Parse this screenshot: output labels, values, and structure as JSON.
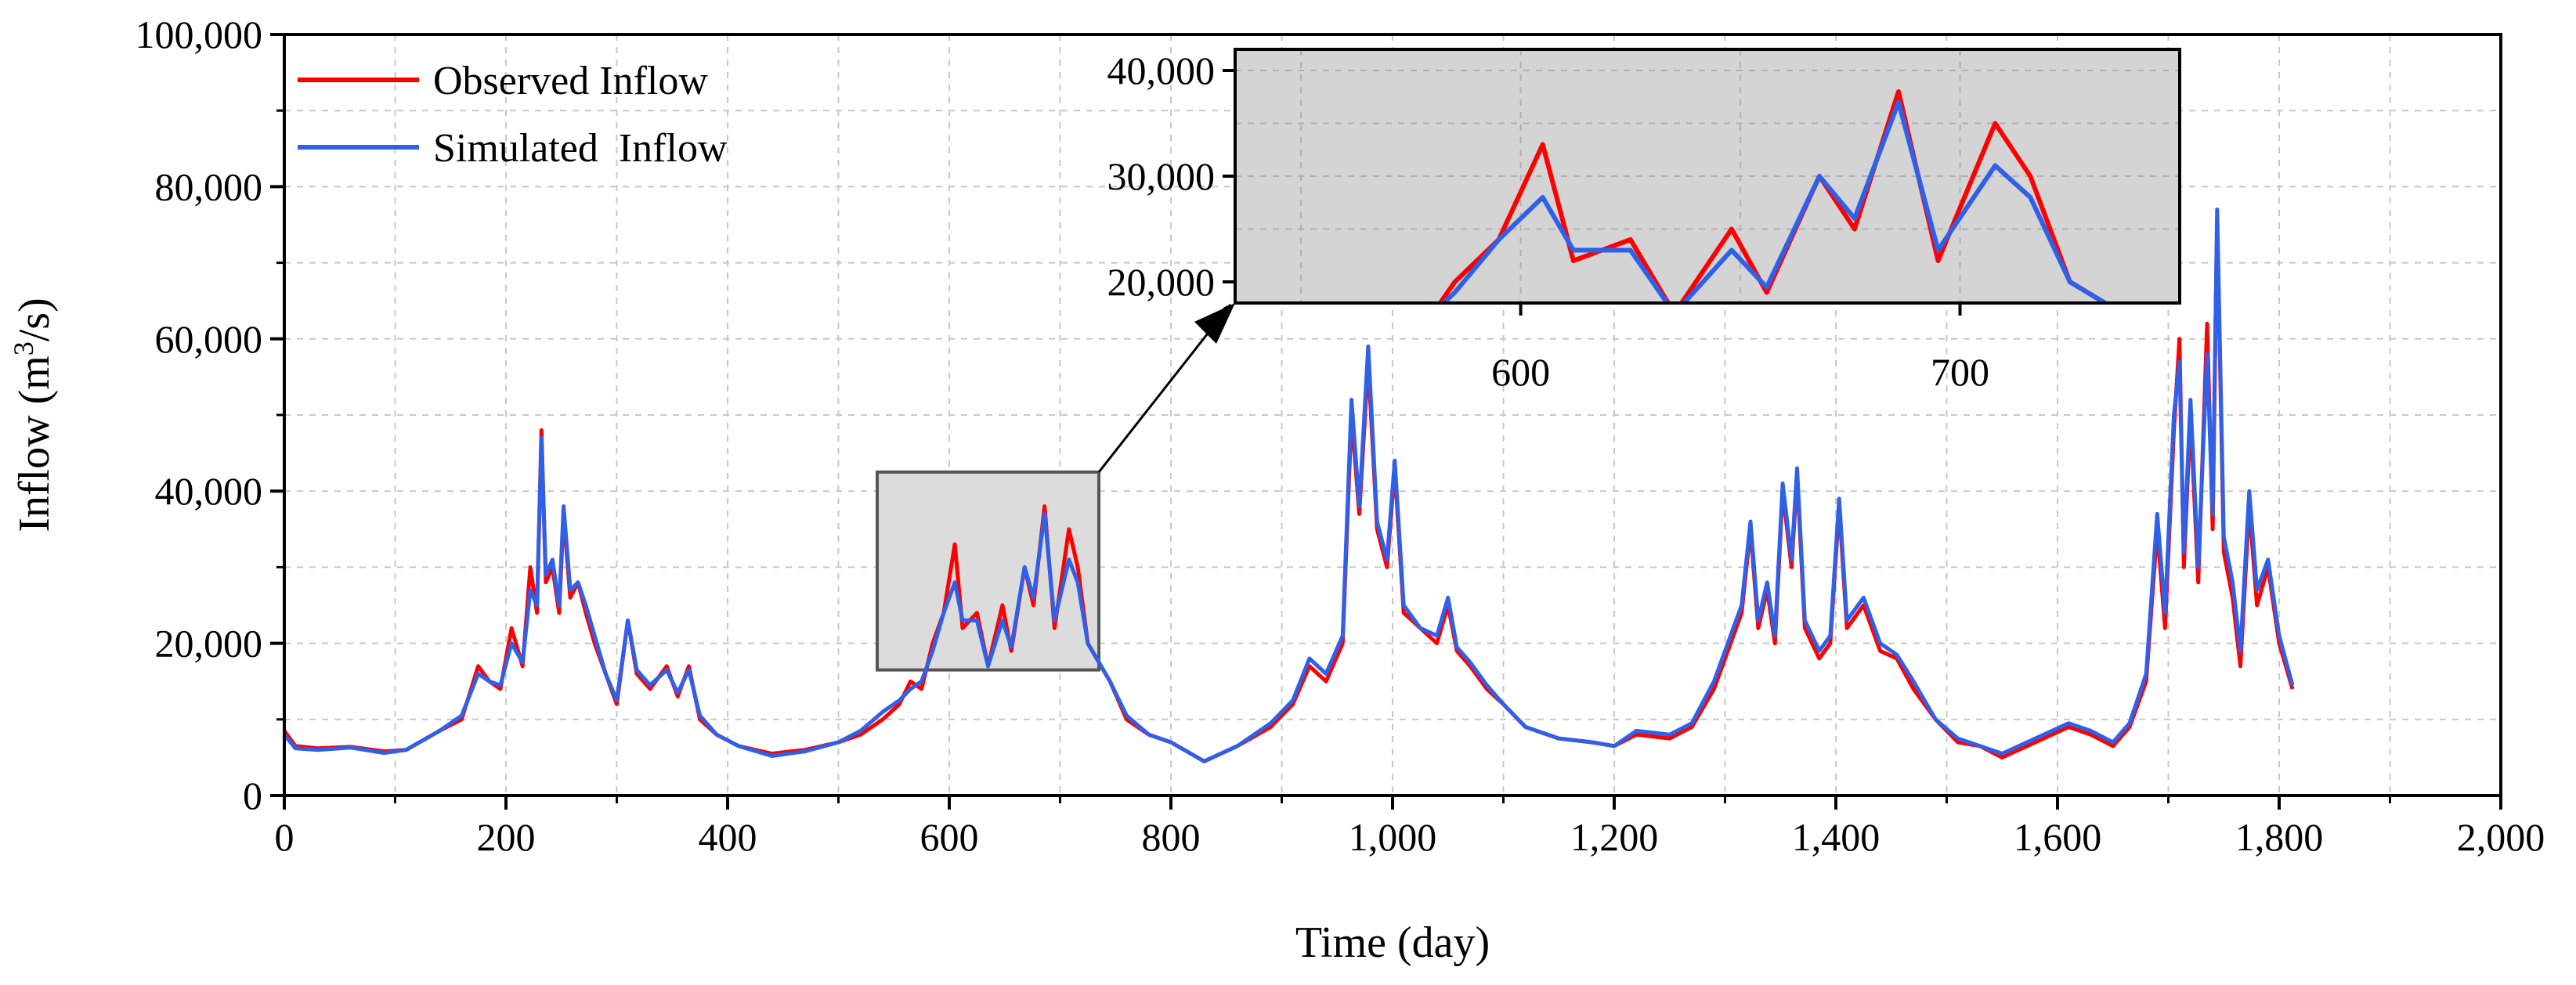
{
  "colors": {
    "observed": "#ff0000",
    "simulated": "#2f60e8",
    "grid": "#c8c8c8",
    "inset_bg": "#d4d4d4",
    "zoom_box_fill": "#dcdcdc"
  },
  "chart_data": {
    "type": "line",
    "xlabel": "Time (day)",
    "ylabel_main": "Inflow (m",
    "ylabel_sup": "3",
    "ylabel_tail": "/s)",
    "xlim": [
      0,
      2000
    ],
    "ylim": [
      0,
      100000
    ],
    "x_ticks": [
      0,
      200,
      400,
      600,
      800,
      1000,
      1200,
      1400,
      1600,
      1800,
      2000
    ],
    "x_tick_labels": [
      "0",
      "200",
      "400",
      "600",
      "800",
      "1,000",
      "1,200",
      "1,400",
      "1,600",
      "1,800",
      "2,000"
    ],
    "y_ticks": [
      0,
      20000,
      40000,
      60000,
      80000,
      100000
    ],
    "y_tick_labels": [
      "0",
      "20,000",
      "40,000",
      "60,000",
      "80,000",
      "100,000"
    ],
    "grid": true,
    "legend_position": "top-left",
    "series": [
      {
        "name": "Observed Inflow",
        "color": "#ff0000",
        "points": [
          [
            0,
            8500
          ],
          [
            10,
            6500
          ],
          [
            30,
            6200
          ],
          [
            60,
            6400
          ],
          [
            90,
            5800
          ],
          [
            110,
            6000
          ],
          [
            140,
            8500
          ],
          [
            160,
            10000
          ],
          [
            175,
            17000
          ],
          [
            185,
            15000
          ],
          [
            195,
            14000
          ],
          [
            205,
            22000
          ],
          [
            215,
            17000
          ],
          [
            222,
            30000
          ],
          [
            228,
            24000
          ],
          [
            232,
            48000
          ],
          [
            236,
            28000
          ],
          [
            242,
            30000
          ],
          [
            248,
            24000
          ],
          [
            252,
            37000
          ],
          [
            258,
            26000
          ],
          [
            265,
            28000
          ],
          [
            272,
            24000
          ],
          [
            280,
            20000
          ],
          [
            290,
            16000
          ],
          [
            300,
            12000
          ],
          [
            310,
            23000
          ],
          [
            318,
            16000
          ],
          [
            330,
            14000
          ],
          [
            345,
            17000
          ],
          [
            355,
            13000
          ],
          [
            365,
            17000
          ],
          [
            375,
            10000
          ],
          [
            390,
            8000
          ],
          [
            410,
            6500
          ],
          [
            440,
            5500
          ],
          [
            470,
            6000
          ],
          [
            500,
            7000
          ],
          [
            520,
            8000
          ],
          [
            540,
            10000
          ],
          [
            555,
            12000
          ],
          [
            565,
            15000
          ],
          [
            575,
            14000
          ],
          [
            585,
            20000
          ],
          [
            595,
            24000
          ],
          [
            605,
            33000
          ],
          [
            612,
            22000
          ],
          [
            625,
            24000
          ],
          [
            635,
            17000
          ],
          [
            648,
            25000
          ],
          [
            656,
            19000
          ],
          [
            668,
            30000
          ],
          [
            676,
            25000
          ],
          [
            686,
            38000
          ],
          [
            695,
            22000
          ],
          [
            708,
            35000
          ],
          [
            716,
            30000
          ],
          [
            725,
            20000
          ],
          [
            745,
            15000
          ],
          [
            760,
            10000
          ],
          [
            780,
            8000
          ],
          [
            800,
            7000
          ],
          [
            830,
            4500
          ],
          [
            860,
            6500
          ],
          [
            890,
            9000
          ],
          [
            910,
            12000
          ],
          [
            925,
            17000
          ],
          [
            940,
            15000
          ],
          [
            955,
            20000
          ],
          [
            963,
            50000
          ],
          [
            970,
            37000
          ],
          [
            978,
            57000
          ],
          [
            986,
            35000
          ],
          [
            995,
            30000
          ],
          [
            1002,
            43000
          ],
          [
            1010,
            24000
          ],
          [
            1025,
            22000
          ],
          [
            1040,
            20000
          ],
          [
            1050,
            25000
          ],
          [
            1058,
            19000
          ],
          [
            1070,
            17000
          ],
          [
            1085,
            14000
          ],
          [
            1100,
            12000
          ],
          [
            1120,
            9000
          ],
          [
            1150,
            7500
          ],
          [
            1180,
            7000
          ],
          [
            1200,
            6500
          ],
          [
            1220,
            8000
          ],
          [
            1250,
            7500
          ],
          [
            1270,
            9000
          ],
          [
            1290,
            14000
          ],
          [
            1305,
            20000
          ],
          [
            1315,
            24000
          ],
          [
            1323,
            35000
          ],
          [
            1330,
            22000
          ],
          [
            1338,
            27000
          ],
          [
            1345,
            20000
          ],
          [
            1352,
            40000
          ],
          [
            1360,
            30000
          ],
          [
            1365,
            42000
          ],
          [
            1372,
            22000
          ],
          [
            1385,
            18000
          ],
          [
            1395,
            20000
          ],
          [
            1403,
            38000
          ],
          [
            1410,
            22000
          ],
          [
            1425,
            25000
          ],
          [
            1440,
            19000
          ],
          [
            1455,
            18000
          ],
          [
            1470,
            14000
          ],
          [
            1490,
            10000
          ],
          [
            1510,
            7000
          ],
          [
            1530,
            6500
          ],
          [
            1550,
            5000
          ],
          [
            1580,
            7000
          ],
          [
            1610,
            9000
          ],
          [
            1630,
            8000
          ],
          [
            1650,
            6500
          ],
          [
            1665,
            9000
          ],
          [
            1680,
            15000
          ],
          [
            1690,
            35000
          ],
          [
            1697,
            22000
          ],
          [
            1705,
            48000
          ],
          [
            1710,
            60000
          ],
          [
            1714,
            30000
          ],
          [
            1720,
            50000
          ],
          [
            1727,
            28000
          ],
          [
            1735,
            62000
          ],
          [
            1740,
            35000
          ],
          [
            1744,
            76000
          ],
          [
            1750,
            32000
          ],
          [
            1758,
            26000
          ],
          [
            1765,
            17000
          ],
          [
            1773,
            38000
          ],
          [
            1780,
            25000
          ],
          [
            1790,
            30000
          ],
          [
            1800,
            20000
          ],
          [
            1812,
            14000
          ]
        ]
      },
      {
        "name": "Simulated  Inflow",
        "color": "#2f60e8",
        "points": [
          [
            0,
            8000
          ],
          [
            10,
            6200
          ],
          [
            30,
            6000
          ],
          [
            60,
            6300
          ],
          [
            90,
            5600
          ],
          [
            110,
            6000
          ],
          [
            140,
            8500
          ],
          [
            160,
            10500
          ],
          [
            175,
            16000
          ],
          [
            185,
            15000
          ],
          [
            195,
            14500
          ],
          [
            205,
            20000
          ],
          [
            215,
            17500
          ],
          [
            222,
            27000
          ],
          [
            228,
            25000
          ],
          [
            232,
            47000
          ],
          [
            236,
            29000
          ],
          [
            242,
            31000
          ],
          [
            248,
            25000
          ],
          [
            252,
            38000
          ],
          [
            258,
            27000
          ],
          [
            265,
            28000
          ],
          [
            272,
            25000
          ],
          [
            280,
            21000
          ],
          [
            290,
            16000
          ],
          [
            300,
            12500
          ],
          [
            310,
            23000
          ],
          [
            318,
            16500
          ],
          [
            330,
            14500
          ],
          [
            345,
            16500
          ],
          [
            355,
            13500
          ],
          [
            365,
            16500
          ],
          [
            375,
            10500
          ],
          [
            390,
            8000
          ],
          [
            410,
            6500
          ],
          [
            440,
            5200
          ],
          [
            470,
            5800
          ],
          [
            500,
            7000
          ],
          [
            520,
            8500
          ],
          [
            540,
            11000
          ],
          [
            555,
            12500
          ],
          [
            565,
            14000
          ],
          [
            575,
            15000
          ],
          [
            585,
            19000
          ],
          [
            595,
            24000
          ],
          [
            605,
            28000
          ],
          [
            612,
            23000
          ],
          [
            625,
            23000
          ],
          [
            635,
            17000
          ],
          [
            648,
            23000
          ],
          [
            656,
            19500
          ],
          [
            668,
            30000
          ],
          [
            676,
            26000
          ],
          [
            686,
            37000
          ],
          [
            695,
            23000
          ],
          [
            708,
            31000
          ],
          [
            716,
            28000
          ],
          [
            725,
            20000
          ],
          [
            745,
            15000
          ],
          [
            760,
            10500
          ],
          [
            780,
            8000
          ],
          [
            800,
            7000
          ],
          [
            830,
            4500
          ],
          [
            860,
            6500
          ],
          [
            890,
            9500
          ],
          [
            910,
            12500
          ],
          [
            925,
            18000
          ],
          [
            940,
            16000
          ],
          [
            955,
            21000
          ],
          [
            963,
            52000
          ],
          [
            970,
            38000
          ],
          [
            978,
            59000
          ],
          [
            986,
            36000
          ],
          [
            995,
            31000
          ],
          [
            1002,
            44000
          ],
          [
            1010,
            25000
          ],
          [
            1025,
            22000
          ],
          [
            1040,
            21000
          ],
          [
            1050,
            26000
          ],
          [
            1058,
            19500
          ],
          [
            1070,
            17500
          ],
          [
            1085,
            14500
          ],
          [
            1100,
            12000
          ],
          [
            1120,
            9000
          ],
          [
            1150,
            7500
          ],
          [
            1180,
            7000
          ],
          [
            1200,
            6500
          ],
          [
            1220,
            8500
          ],
          [
            1250,
            8000
          ],
          [
            1270,
            9500
          ],
          [
            1290,
            15000
          ],
          [
            1305,
            21000
          ],
          [
            1315,
            25000
          ],
          [
            1323,
            36000
          ],
          [
            1330,
            23000
          ],
          [
            1338,
            28000
          ],
          [
            1345,
            21000
          ],
          [
            1352,
            41000
          ],
          [
            1360,
            31000
          ],
          [
            1365,
            43000
          ],
          [
            1372,
            23000
          ],
          [
            1385,
            19000
          ],
          [
            1395,
            21000
          ],
          [
            1403,
            39000
          ],
          [
            1410,
            23000
          ],
          [
            1425,
            26000
          ],
          [
            1440,
            20000
          ],
          [
            1455,
            18500
          ],
          [
            1470,
            15000
          ],
          [
            1490,
            10000
          ],
          [
            1510,
            7500
          ],
          [
            1530,
            6500
          ],
          [
            1550,
            5500
          ],
          [
            1580,
            7500
          ],
          [
            1610,
            9500
          ],
          [
            1630,
            8500
          ],
          [
            1650,
            7000
          ],
          [
            1665,
            9500
          ],
          [
            1680,
            16000
          ],
          [
            1690,
            37000
          ],
          [
            1697,
            24000
          ],
          [
            1705,
            50000
          ],
          [
            1710,
            57000
          ],
          [
            1714,
            32000
          ],
          [
            1720,
            52000
          ],
          [
            1727,
            30000
          ],
          [
            1735,
            58000
          ],
          [
            1740,
            37000
          ],
          [
            1744,
            77000
          ],
          [
            1750,
            34000
          ],
          [
            1758,
            28000
          ],
          [
            1765,
            19000
          ],
          [
            1773,
            40000
          ],
          [
            1780,
            27000
          ],
          [
            1790,
            31000
          ],
          [
            1800,
            21000
          ],
          [
            1812,
            14500
          ]
        ]
      }
    ],
    "zoom_region": {
      "x_range": [
        535,
        735
      ],
      "y_range": [
        16500,
        42500
      ]
    },
    "inset": {
      "xlim": [
        535,
        750
      ],
      "ylim": [
        18000,
        42000
      ],
      "x_ticks": [
        600,
        700
      ],
      "x_tick_labels": [
        "600",
        "700"
      ],
      "y_ticks": [
        20000,
        30000,
        40000
      ],
      "y_tick_labels": [
        "20,000",
        "30,000",
        "40,000"
      ],
      "grid": true
    }
  }
}
